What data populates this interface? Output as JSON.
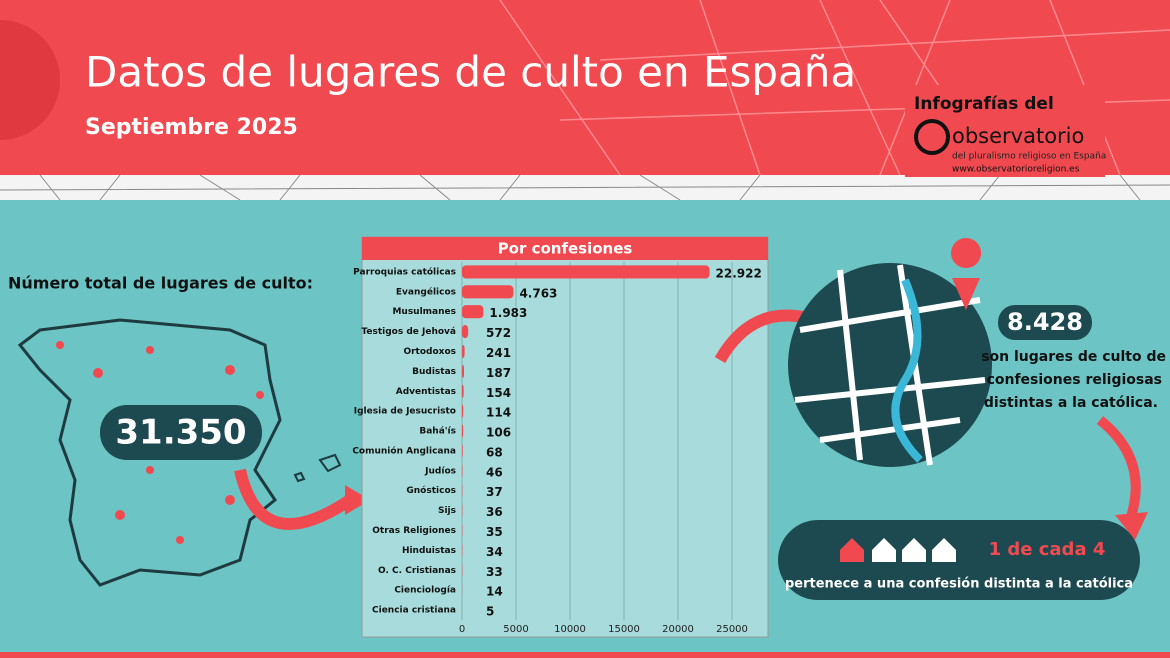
{
  "header": {
    "title": "Datos de lugares de culto en España",
    "subtitle": "Septiembre 2025",
    "logo_intro": "Infografías del",
    "logo_name": "observatorio",
    "logo_tagline": "del pluralismo religioso en España",
    "logo_url": "www.observatorioreligion.es"
  },
  "total": {
    "label": "Número total de lugares de culto:",
    "value": "31.350"
  },
  "chart_data": {
    "type": "bar",
    "orientation": "horizontal",
    "title": "Por confesiones",
    "categories": [
      "Parroquias católicas",
      "Evangélicos",
      "Musulmanes",
      "Testigos de Jehová",
      "Ortodoxos",
      "Budistas",
      "Adventistas",
      "Iglesia de Jesucristo",
      "Bahá'ís",
      "Comunión Anglicana",
      "Judíos",
      "Gnósticos",
      "Sijs",
      "Otras Religiones",
      "Hinduistas",
      "O. C. Cristianas",
      "Cienciología",
      "Ciencia cristiana"
    ],
    "values": [
      22922,
      4763,
      1983,
      572,
      241,
      187,
      154,
      114,
      106,
      68,
      46,
      37,
      36,
      35,
      34,
      33,
      14,
      5
    ],
    "value_labels": [
      "22.922",
      "4.763",
      "1.983",
      "572",
      "241",
      "187",
      "154",
      "114",
      "106",
      "68",
      "46",
      "37",
      "36",
      "35",
      "34",
      "33",
      "14",
      "5"
    ],
    "color": "#f04a50",
    "xlim": [
      0,
      28000
    ],
    "xticks": [
      0,
      5000,
      10000,
      15000,
      20000,
      25000
    ],
    "grid": true
  },
  "non_catholic": {
    "value": "8.428",
    "lines": [
      "son lugares de culto de",
      "confesiones religiosas",
      "distintas a la católica."
    ]
  },
  "ratio": {
    "headline": "1 de cada 4",
    "text": "pertenece a una confesión distinta a la católica"
  }
}
